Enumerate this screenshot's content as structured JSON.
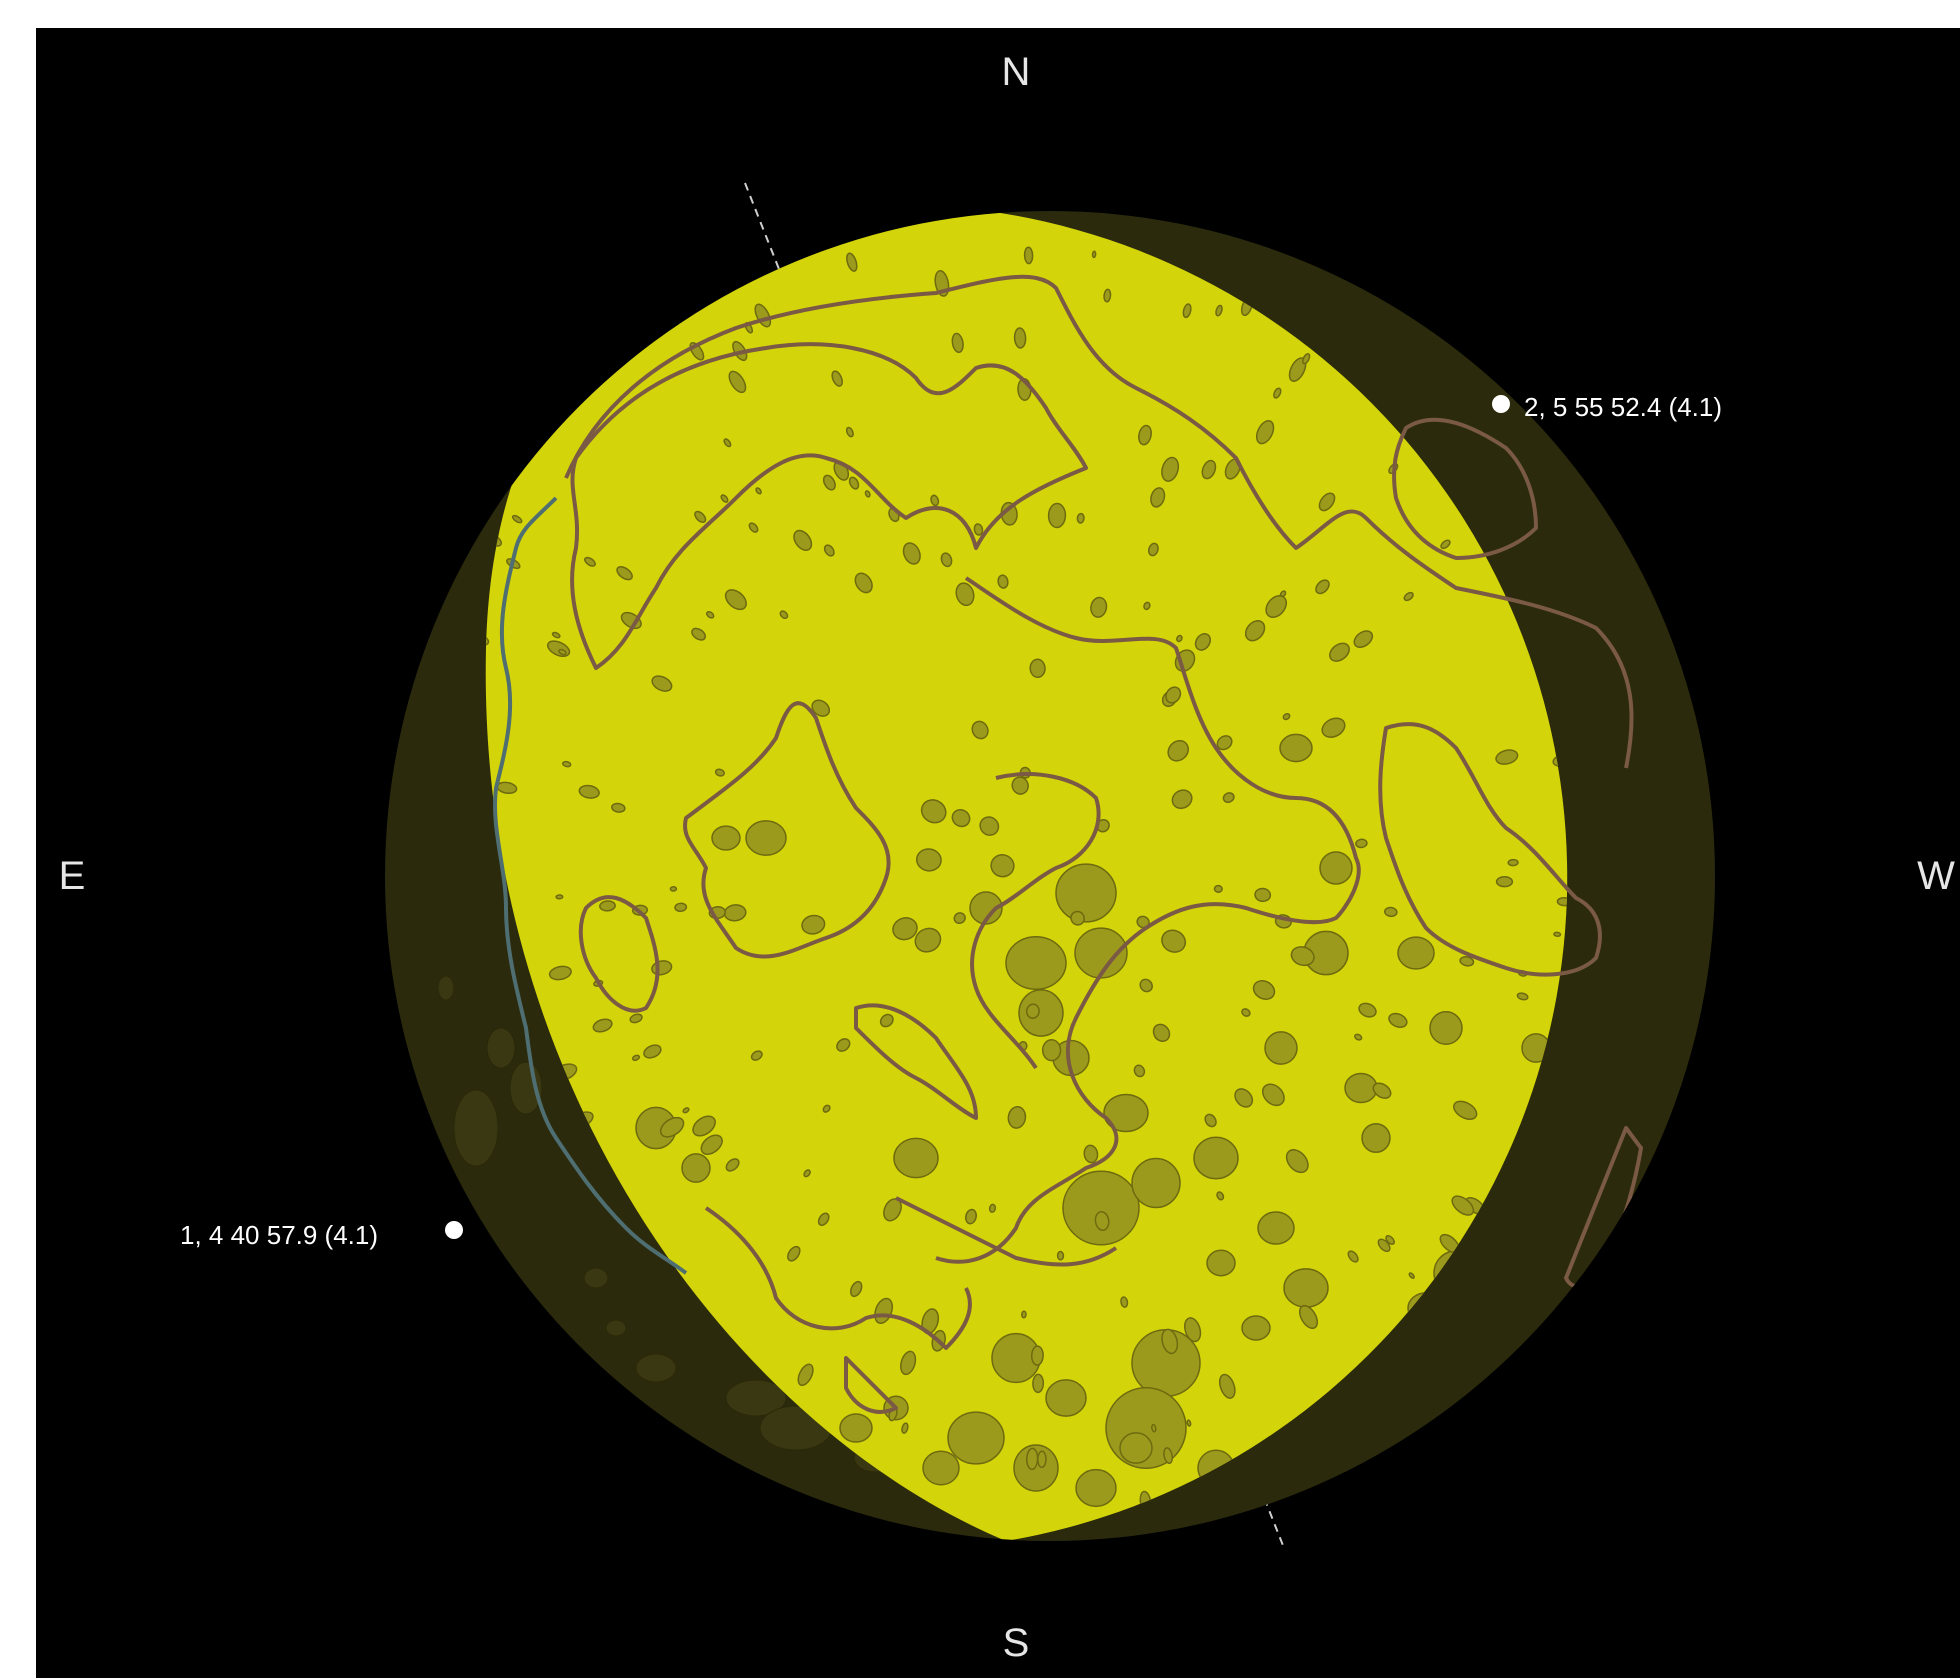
{
  "compass": {
    "north": "N",
    "south": "S",
    "east": "E",
    "west": "W"
  },
  "colors": {
    "background": "#000000",
    "lit_surface": "#d4d40a",
    "dark_limb": "#2b2a0c",
    "crater_fill": "#9c9a1c",
    "mare_outline": "#7a5a44",
    "terminator_outline": "#4e6e72",
    "marker": "#ffffff"
  },
  "events": [
    {
      "id": "event-1",
      "label": "1,  4 40 57.9 (4.1)"
    },
    {
      "id": "event-2",
      "label": "2,  5 55 52.4 (4.1)"
    }
  ]
}
